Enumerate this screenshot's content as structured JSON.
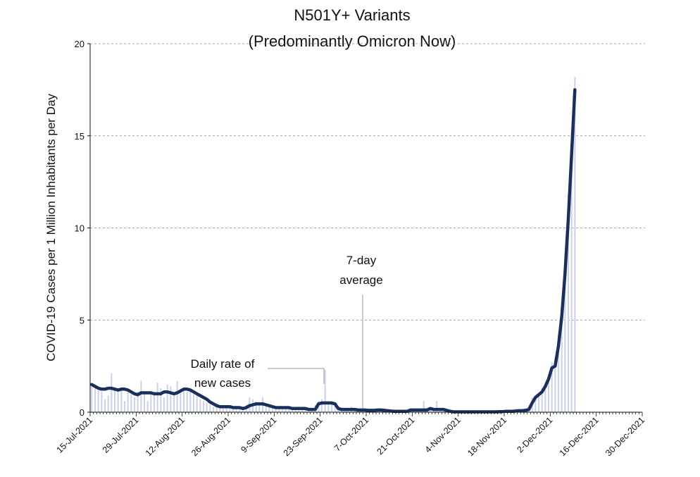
{
  "chart_data": {
    "type": "bar+line",
    "title_line1": "N501Y+ Variants",
    "title_line2": "(Predominantly Omicron Now)",
    "xlabel": "",
    "ylabel": "COVID-19 Cases per 1 Million Inhabitants per Day",
    "ylim": [
      0,
      20
    ],
    "yticks": [
      0,
      5,
      10,
      15,
      20
    ],
    "grid": "horizontal dashed",
    "xrange": [
      "15-Jul-2021",
      "30-Dec-2021"
    ],
    "xtick_labels": [
      "15-Jul-2021",
      "29-Jul-2021",
      "12-Aug-2021",
      "26-Aug-2021",
      "9-Sep-2021",
      "23-Sep-2021",
      "7-Oct-2021",
      "21-Oct-2021",
      "4-Nov-2021",
      "18-Nov-2021",
      "2-Dec-2021",
      "16-Dec-2021",
      "30-Dec-2021"
    ],
    "x_start": "15-Jul-2021",
    "x_end": "9-Dec-2021",
    "series": [
      {
        "name": "Daily rate of new cases",
        "type": "bar",
        "color": "#c9d2e8",
        "values": [
          1.4,
          1.3,
          1.2,
          1.1,
          0.7,
          0.9,
          2.1,
          1.3,
          1.3,
          1.2,
          0.6,
          1.2,
          1.0,
          0.8,
          1.1,
          1.7,
          1.1,
          0.6,
          1.0,
          1.1,
          1.6,
          1.3,
          0.8,
          1.5,
          1.4,
          1.1,
          1.7,
          1.3,
          1.3,
          1.1,
          1.3,
          1.0,
          0.9,
          0.7,
          0.6,
          0.5,
          0.4,
          0.3,
          0.5,
          0.3,
          0.2,
          0.3,
          0.3,
          0.2,
          0.3,
          0.2,
          0.3,
          0.4,
          0.8,
          0.7,
          0.6,
          0.4,
          0.8,
          0.4,
          0.3,
          0.2,
          0.3,
          0.2,
          0.3,
          0.3,
          0.3,
          0.2,
          0.2,
          0.3,
          0.2,
          0.2,
          0.1,
          0.2,
          0.4,
          0.6,
          0.7,
          2.3,
          0.6,
          0.6,
          0.4,
          0.3,
          0.2,
          0.1,
          0.2,
          0.3,
          0.2,
          0.1,
          0.2,
          0.1,
          0.1,
          0.1,
          0.2,
          0.1,
          0.1,
          0.1,
          0.1,
          0.1,
          0.0,
          0.1,
          0.0,
          0.1,
          0.1,
          0.2,
          0.1,
          0.1,
          0.1,
          0.6,
          0.1,
          0.2,
          0.1,
          0.6,
          0.2,
          0.1,
          0.1,
          0.0,
          0.0,
          0.0,
          0.0,
          0.0,
          0.0,
          0.0,
          0.0,
          0.0,
          0.0,
          0.1,
          0.0,
          0.0,
          0.1,
          0.0,
          0.0,
          0.1,
          0.1,
          0.0,
          0.1,
          0.2,
          0.1,
          0.1,
          0.2,
          0.2,
          0.8,
          0.9,
          1.0,
          1.3,
          1.6,
          2.0,
          2.7,
          3.0,
          4.2,
          6.0,
          8.6,
          11.8,
          15.2,
          18.2
        ]
      },
      {
        "name": "7-day average",
        "type": "line",
        "color": "#1b2f5e",
        "values": [
          1.5,
          1.4,
          1.3,
          1.25,
          1.25,
          1.3,
          1.3,
          1.25,
          1.2,
          1.25,
          1.25,
          1.2,
          1.1,
          1.0,
          0.95,
          1.05,
          1.05,
          1.05,
          1.05,
          1.0,
          1.0,
          1.0,
          1.1,
          1.1,
          1.05,
          1.0,
          1.05,
          1.15,
          1.25,
          1.25,
          1.2,
          1.1,
          1.0,
          0.9,
          0.8,
          0.7,
          0.55,
          0.45,
          0.35,
          0.3,
          0.3,
          0.3,
          0.3,
          0.25,
          0.25,
          0.25,
          0.2,
          0.25,
          0.35,
          0.4,
          0.45,
          0.45,
          0.45,
          0.4,
          0.35,
          0.3,
          0.25,
          0.25,
          0.25,
          0.25,
          0.25,
          0.2,
          0.2,
          0.2,
          0.2,
          0.2,
          0.15,
          0.15,
          0.15,
          0.45,
          0.5,
          0.5,
          0.5,
          0.5,
          0.45,
          0.2,
          0.15,
          0.15,
          0.15,
          0.15,
          0.15,
          0.12,
          0.12,
          0.12,
          0.1,
          0.1,
          0.1,
          0.12,
          0.12,
          0.1,
          0.08,
          0.06,
          0.05,
          0.05,
          0.05,
          0.05,
          0.05,
          0.12,
          0.12,
          0.12,
          0.12,
          0.12,
          0.12,
          0.2,
          0.15,
          0.15,
          0.15,
          0.15,
          0.1,
          0.05,
          0.02,
          0.02,
          0.02,
          0.02,
          0.02,
          0.02,
          0.02,
          0.02,
          0.02,
          0.02,
          0.02,
          0.02,
          0.02,
          0.02,
          0.03,
          0.03,
          0.05,
          0.05,
          0.05,
          0.06,
          0.08,
          0.08,
          0.1,
          0.15,
          0.5,
          0.8,
          0.95,
          1.1,
          1.4,
          1.8,
          2.4,
          2.5,
          3.6,
          5.2,
          7.5,
          10.5,
          14.0,
          17.5
        ]
      }
    ],
    "annotations": [
      {
        "text_line1": "Daily rate of",
        "text_line2": "new cases"
      },
      {
        "text_line1": "7-day",
        "text_line2": "average"
      }
    ]
  }
}
